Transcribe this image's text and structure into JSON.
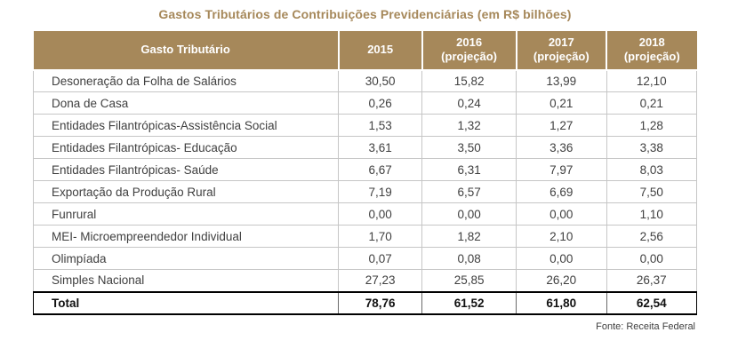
{
  "title": "Gastos Tributários de Contribuições Previdenciárias (em R$ bilhões)",
  "source": "Fonte: Receita Federal",
  "colors": {
    "accent": "#A6885A",
    "header_bg": "#A6885A",
    "header_text": "#FFFFFF",
    "body_text": "#404040",
    "grid": "#C6C6C6",
    "total_border": "#000000"
  },
  "chart_data": {
    "type": "table",
    "title": "Gastos Tributários de Contribuições Previdenciárias (em R$ bilhões)",
    "columns": [
      {
        "label": "Gasto Tributário",
        "sublabel": ""
      },
      {
        "label": "2015",
        "sublabel": ""
      },
      {
        "label": "2016",
        "sublabel": "(projeção)"
      },
      {
        "label": "2017",
        "sublabel": "(projeção)"
      },
      {
        "label": "2018",
        "sublabel": "(projeção)"
      }
    ],
    "rows": [
      {
        "name": "Desoneração da Folha de Salários",
        "values": [
          "30,50",
          "15,82",
          "13,99",
          "12,10"
        ],
        "is_total": false
      },
      {
        "name": "Dona de Casa",
        "values": [
          "0,26",
          "0,24",
          "0,21",
          "0,21"
        ],
        "is_total": false
      },
      {
        "name": "Entidades Filantrópicas-Assistência Social",
        "values": [
          "1,53",
          "1,32",
          "1,27",
          "1,28"
        ],
        "is_total": false
      },
      {
        "name": "Entidades Filantrópicas- Educação",
        "values": [
          "3,61",
          "3,50",
          "3,36",
          "3,38"
        ],
        "is_total": false
      },
      {
        "name": "Entidades Filantrópicas- Saúde",
        "values": [
          "6,67",
          "6,31",
          "7,97",
          "8,03"
        ],
        "is_total": false
      },
      {
        "name": "Exportação da Produção Rural",
        "values": [
          "7,19",
          "6,57",
          "6,69",
          "7,50"
        ],
        "is_total": false
      },
      {
        "name": "Funrural",
        "values": [
          "0,00",
          "0,00",
          "0,00",
          "1,10"
        ],
        "is_total": false
      },
      {
        "name": "MEI- Microempreendedor Individual",
        "values": [
          "1,70",
          "1,82",
          "2,10",
          "2,56"
        ],
        "is_total": false
      },
      {
        "name": "Olimpíada",
        "values": [
          "0,07",
          "0,08",
          "0,00",
          "0,00"
        ],
        "is_total": false
      },
      {
        "name": "Simples Nacional",
        "values": [
          "27,23",
          "25,85",
          "26,20",
          "26,37"
        ],
        "is_total": false
      },
      {
        "name": "Total",
        "values": [
          "78,76",
          "61,52",
          "61,80",
          "62,54"
        ],
        "is_total": true
      }
    ],
    "source": "Fonte: Receita Federal"
  }
}
